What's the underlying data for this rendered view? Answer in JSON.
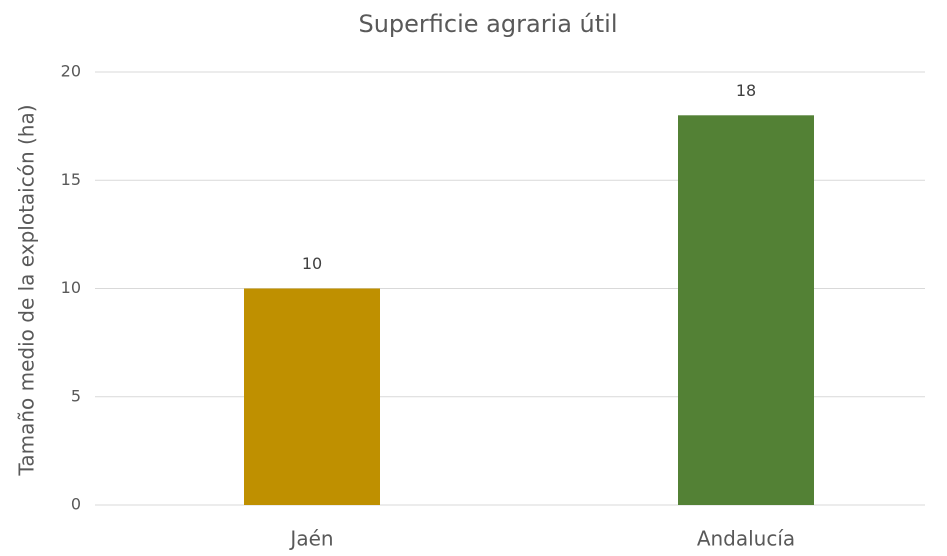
{
  "chart_data": {
    "type": "bar",
    "title": "Superficie agraria útil",
    "y_label": "Tamaño medio de la explotaicón (ha)",
    "categories": [
      "Jaén",
      "Andalucía"
    ],
    "values": [
      10,
      18
    ],
    "colors": [
      "#bf9000",
      "#538135"
    ],
    "ylim": [
      0,
      20
    ],
    "yticks": [
      0,
      5,
      10,
      15,
      20
    ],
    "grid": true
  }
}
